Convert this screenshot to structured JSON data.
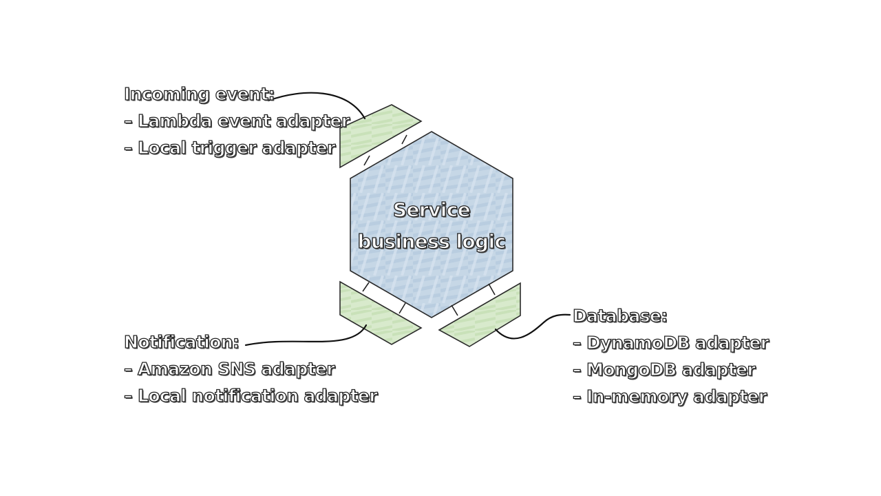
{
  "core": {
    "title_line1": "Service",
    "title_line2": "business logic",
    "fill_color": "#c6d7e6"
  },
  "adapter_fill_color": "#d5e8c8",
  "ports": {
    "incoming": {
      "heading": "Incoming event:",
      "items": [
        "– Lambda event adapter",
        "– Local trigger adapter"
      ]
    },
    "notification": {
      "heading": "Notification:",
      "items": [
        "– Amazon SNS adapter",
        "– Local notification adapter"
      ]
    },
    "database": {
      "heading": "Database:",
      "items": [
        "– DynamoDB adapter",
        "– MongoDB adapter",
        "– In-memory adapter"
      ]
    }
  }
}
